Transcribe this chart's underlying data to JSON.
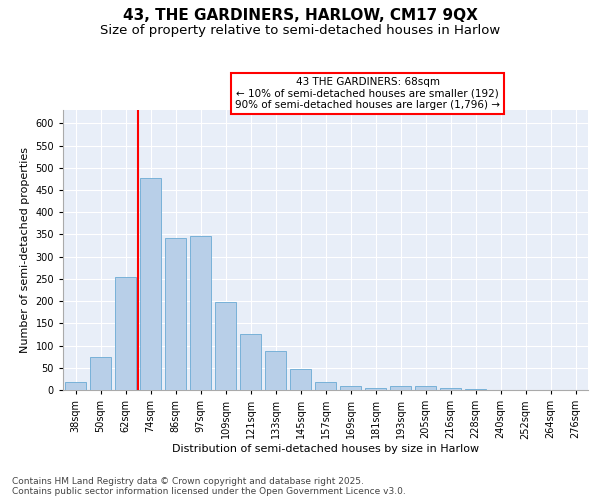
{
  "title_line1": "43, THE GARDINERS, HARLOW, CM17 9QX",
  "title_line2": "Size of property relative to semi-detached houses in Harlow",
  "xlabel": "Distribution of semi-detached houses by size in Harlow",
  "ylabel": "Number of semi-detached properties",
  "categories": [
    "38sqm",
    "50sqm",
    "62sqm",
    "74sqm",
    "86sqm",
    "97sqm",
    "109sqm",
    "121sqm",
    "133sqm",
    "145sqm",
    "157sqm",
    "169sqm",
    "181sqm",
    "193sqm",
    "205sqm",
    "216sqm",
    "228sqm",
    "240sqm",
    "252sqm",
    "264sqm",
    "276sqm"
  ],
  "values": [
    17,
    74,
    255,
    477,
    341,
    347,
    198,
    126,
    88,
    47,
    17,
    8,
    5,
    8,
    8,
    5,
    2,
    1,
    1,
    1,
    1
  ],
  "bar_color": "#b8cfe8",
  "bar_edge_color": "#6aaad4",
  "vline_x": 2.5,
  "vline_color": "red",
  "annotation_title": "43 THE GARDINERS: 68sqm",
  "annotation_smaller": "← 10% of semi-detached houses are smaller (192)",
  "annotation_larger": "90% of semi-detached houses are larger (1,796) →",
  "ylim_max": 630,
  "yticks": [
    0,
    50,
    100,
    150,
    200,
    250,
    300,
    350,
    400,
    450,
    500,
    550,
    600
  ],
  "footnote_line1": "Contains HM Land Registry data © Crown copyright and database right 2025.",
  "footnote_line2": "Contains public sector information licensed under the Open Government Licence v3.0.",
  "bg_color": "#e8eef8",
  "grid_color": "white",
  "title_fontsize": 11,
  "subtitle_fontsize": 9.5,
  "axis_label_fontsize": 8,
  "tick_fontsize": 7,
  "annot_fontsize": 7.5,
  "footnote_fontsize": 6.5
}
